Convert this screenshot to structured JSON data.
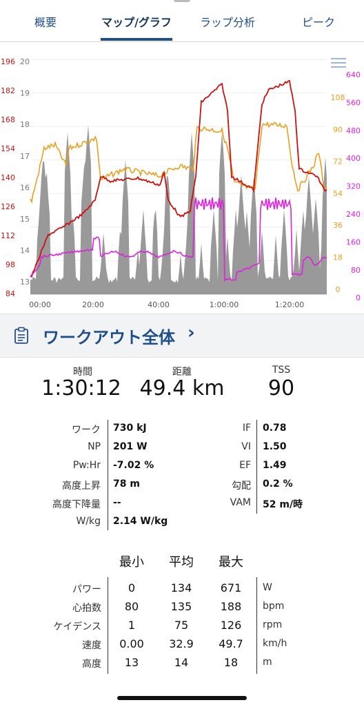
{
  "tabs": [
    {
      "label": "概要",
      "active": false
    },
    {
      "label": "マップ/グラフ",
      "active": true
    },
    {
      "label": "ラップ分析",
      "active": false
    },
    {
      "label": "ピーク",
      "active": false
    }
  ],
  "chart": {
    "menu_icon": "list-icon",
    "x_ticks": [
      "00:00",
      "20:00",
      "40:00",
      "1:00:00",
      "1:20:00"
    ],
    "hr_ticks": [
      "196",
      "182",
      "168",
      "154",
      "140",
      "126",
      "112",
      "98",
      "84"
    ],
    "elev_ticks": [
      "20",
      "19",
      "18",
      "17",
      "16",
      "15",
      "14",
      "13"
    ],
    "cadence_ticks": [
      "108",
      "90",
      "72",
      "54",
      "36",
      "18",
      "0"
    ],
    "power_ticks": [
      "640",
      "560",
      "480",
      "400",
      "320",
      "240",
      "160",
      "80",
      "0"
    ],
    "colors": {
      "hr": "#cc1010",
      "elevation": "#8a8a8a",
      "cadence": "#e8a020",
      "power": "#e020e0"
    }
  },
  "workout": {
    "title": "ワークアウト全体",
    "icon": "clipboard-icon",
    "chevron": "›"
  },
  "summary": [
    {
      "label": "時間",
      "value": "1:30:12"
    },
    {
      "label": "距離",
      "value": "49.4 km"
    },
    {
      "label": "TSS",
      "value": "90"
    }
  ],
  "metrics_left": [
    {
      "label": "ワーク",
      "value": "730 kJ"
    },
    {
      "label": "NP",
      "value": "201 W"
    },
    {
      "label": "Pw:Hr",
      "value": "-7.02 %"
    },
    {
      "label": "高度上昇",
      "value": "78 m"
    },
    {
      "label": "高度下降量",
      "value": "--"
    },
    {
      "label": "W/kg",
      "value": "2.14 W/kg"
    }
  ],
  "metrics_right": [
    {
      "label": "IF",
      "value": "0.78"
    },
    {
      "label": "VI",
      "value": "1.50"
    },
    {
      "label": "EF",
      "value": "1.49"
    },
    {
      "label": "勾配",
      "value": "0.2 %"
    },
    {
      "label": "VAM",
      "value": "52 m/時"
    }
  ],
  "stats": {
    "headers": [
      "最小",
      "平均",
      "最大"
    ],
    "rows": [
      {
        "label": "パワー",
        "min": "0",
        "avg": "134",
        "max": "671",
        "unit": "W"
      },
      {
        "label": "心拍数",
        "min": "80",
        "avg": "135",
        "max": "188",
        "unit": "bpm"
      },
      {
        "label": "ケイデンス",
        "min": "1",
        "avg": "75",
        "max": "126",
        "unit": "rpm"
      },
      {
        "label": "速度",
        "min": "0.00",
        "avg": "32.9",
        "max": "49.7",
        "unit": "km/h"
      },
      {
        "label": "高度",
        "min": "13",
        "avg": "14",
        "max": "18",
        "unit": "m"
      }
    ]
  }
}
